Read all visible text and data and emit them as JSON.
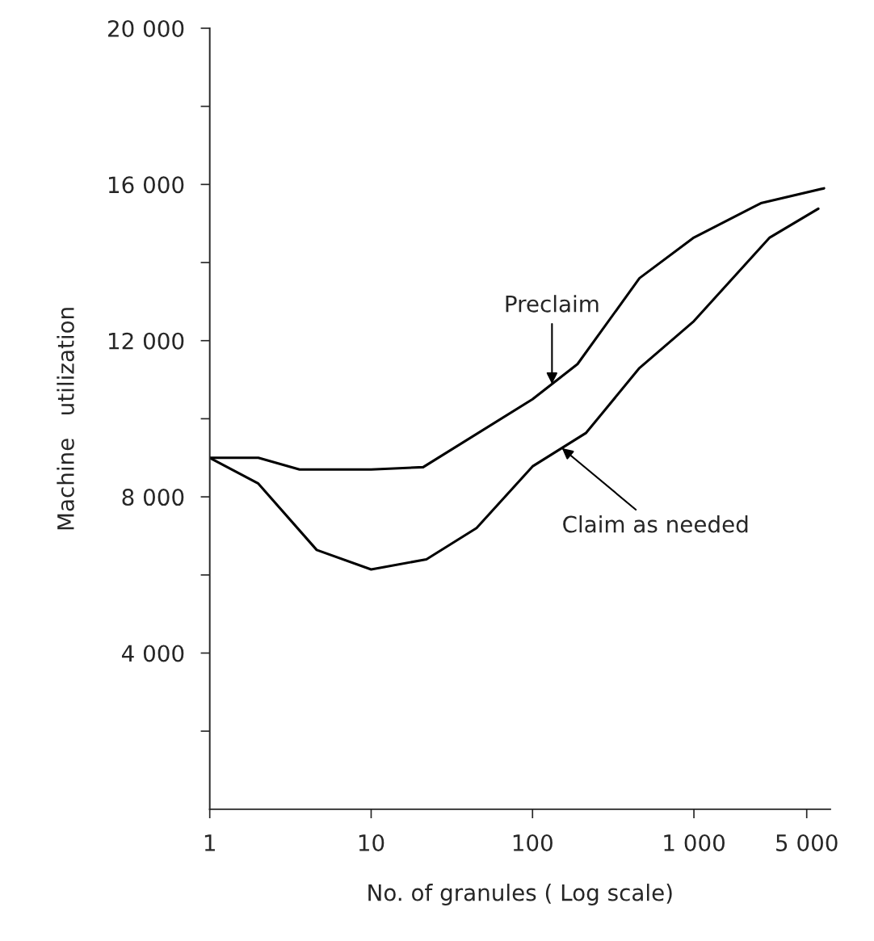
{
  "chart_data": {
    "type": "line",
    "xlabel": "No. of granules ( Log scale)",
    "ylabel": "Machine   utilization",
    "log": "x",
    "xlim": [
      1,
      7000
    ],
    "ylim": [
      0,
      20000
    ],
    "xticks": [
      1,
      10,
      100,
      {
        "value": 1000,
        "label": "1 000"
      },
      {
        "value": 5000,
        "label": "5 000"
      }
    ],
    "yticks": [
      {
        "value": 2000,
        "label": null
      },
      {
        "value": 4000,
        "label": "4 000"
      },
      {
        "value": 6000,
        "label": null
      },
      {
        "value": 8000,
        "label": "8 000"
      },
      {
        "value": 10000,
        "label": null
      },
      {
        "value": 12000,
        "label": "12 000"
      },
      {
        "value": 14000,
        "label": null
      },
      {
        "value": 16000,
        "label": "16 000"
      },
      {
        "value": 18000,
        "label": null
      },
      {
        "value": 20000,
        "label": "20 000"
      }
    ],
    "grid": false,
    "legend": false,
    "series": [
      {
        "color": "#000000",
        "x": [
          1,
          2,
          3.6,
          10,
          21,
          100,
          190,
          460,
          1000,
          2600,
          6400
        ],
        "values": [
          9000,
          9000,
          8700,
          8700,
          8760,
          10500,
          11400,
          13600,
          14640,
          15520,
          15900
        ]
      },
      {
        "color": "#000000",
        "x": [
          1,
          2,
          4.6,
          10,
          22,
          45,
          100,
          215,
          460,
          1000,
          2950,
          5900
        ],
        "values": [
          9000,
          8340,
          6640,
          6140,
          6400,
          7200,
          8780,
          9640,
          11300,
          12500,
          14640,
          15380
        ]
      }
    ],
    "annotations": [
      {
        "text": "Preclaim",
        "x": 132,
        "y": 10890
      },
      {
        "text": "Claim as needed",
        "x": 152,
        "y": 9250
      }
    ]
  }
}
